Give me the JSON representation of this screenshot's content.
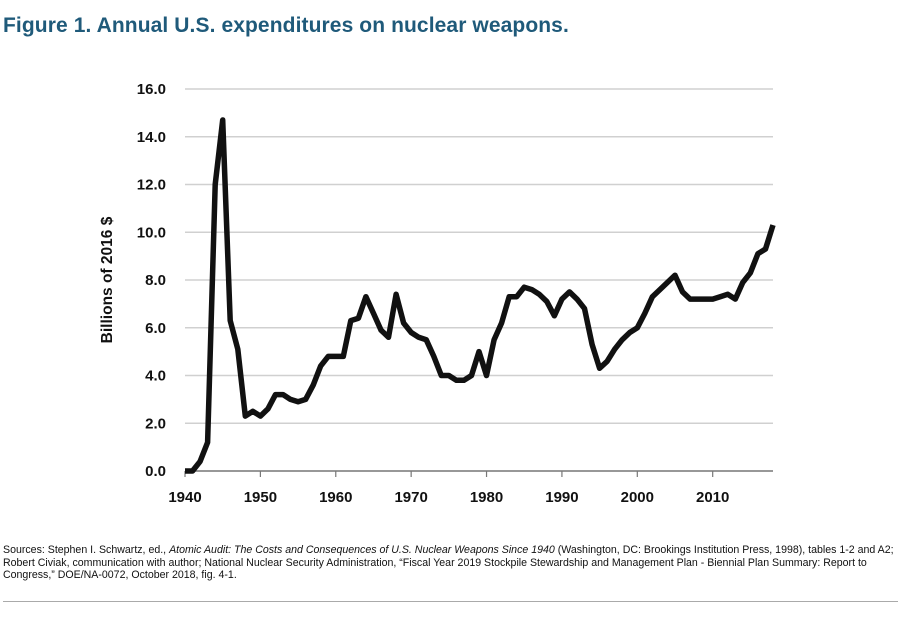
{
  "figure_title": "Figure 1. Annual U.S. expenditures on nuclear weapons.",
  "sources": {
    "prefix": "Sources: Stephen I. Schwartz, ed., ",
    "book_title": "Atomic Audit: The Costs and Consequences of U.S. Nuclear Weapons Since 1940",
    "suffix": " (Washington, DC: Brookings Institution Press, 1998), tables 1-2 and A2; Robert Civiak, communication with author; National Nuclear Security Administration, “Fiscal Year 2019 Stockpile Stewardship and Management Plan - Biennial Plan Summary: Report to Congress,” DOE/NA-0072, October 2018, fig. 4-1."
  },
  "chart_data": {
    "type": "line",
    "title": "Figure 1. Annual U.S. expenditures on nuclear weapons.",
    "xlabel": "",
    "ylabel": "Billions of 2016 $",
    "xlim": [
      1940,
      2018
    ],
    "ylim": [
      0,
      16
    ],
    "x_ticks": [
      "1940",
      "1950",
      "1960",
      "1970",
      "1980",
      "1990",
      "2000",
      "2010"
    ],
    "y_ticks": [
      "0.0",
      "2.0",
      "4.0",
      "6.0",
      "8.0",
      "10.0",
      "12.0",
      "14.0",
      "16.0"
    ],
    "grid": "horizontal",
    "line_color": "#111111",
    "series": [
      {
        "x": [
          1940,
          1941,
          1942,
          1943,
          1944,
          1945,
          1946,
          1947,
          1948,
          1949,
          1950,
          1951,
          1952,
          1953,
          1954,
          1955,
          1956,
          1957,
          1958,
          1959,
          1960,
          1961,
          1962,
          1963,
          1964,
          1965,
          1966,
          1967,
          1968,
          1969,
          1970,
          1971,
          1972,
          1973,
          1974,
          1975,
          1976,
          1977,
          1978,
          1979,
          1980,
          1981,
          1982,
          1983,
          1984,
          1985,
          1986,
          1987,
          1988,
          1989,
          1990,
          1991,
          1992,
          1993,
          1994,
          1995,
          1996,
          1997,
          1998,
          1999,
          2000,
          2001,
          2002,
          2003,
          2004,
          2005,
          2006,
          2007,
          2008,
          2009,
          2010,
          2011,
          2012,
          2013,
          2014,
          2015,
          2016,
          2017,
          2018
        ],
        "values": [
          0.0,
          0.0,
          0.4,
          1.2,
          12.0,
          14.7,
          6.3,
          5.1,
          2.3,
          2.5,
          2.3,
          2.6,
          3.2,
          3.2,
          3.0,
          2.9,
          3.0,
          3.6,
          4.4,
          4.8,
          4.8,
          4.8,
          6.3,
          6.4,
          7.3,
          6.6,
          5.9,
          5.6,
          7.4,
          6.2,
          5.8,
          5.6,
          5.5,
          4.8,
          4.0,
          4.0,
          3.8,
          3.8,
          4.0,
          5.0,
          4.0,
          5.5,
          6.2,
          7.3,
          7.3,
          7.7,
          7.6,
          7.4,
          7.1,
          6.5,
          7.2,
          7.5,
          7.2,
          6.8,
          5.3,
          4.3,
          4.6,
          5.1,
          5.5,
          5.8,
          6.0,
          6.6,
          7.3,
          7.6,
          7.9,
          8.2,
          7.5,
          7.2,
          7.2,
          7.2,
          7.2,
          7.3,
          7.4,
          7.2,
          7.9,
          8.3,
          9.1,
          9.3,
          10.3
        ]
      }
    ]
  }
}
